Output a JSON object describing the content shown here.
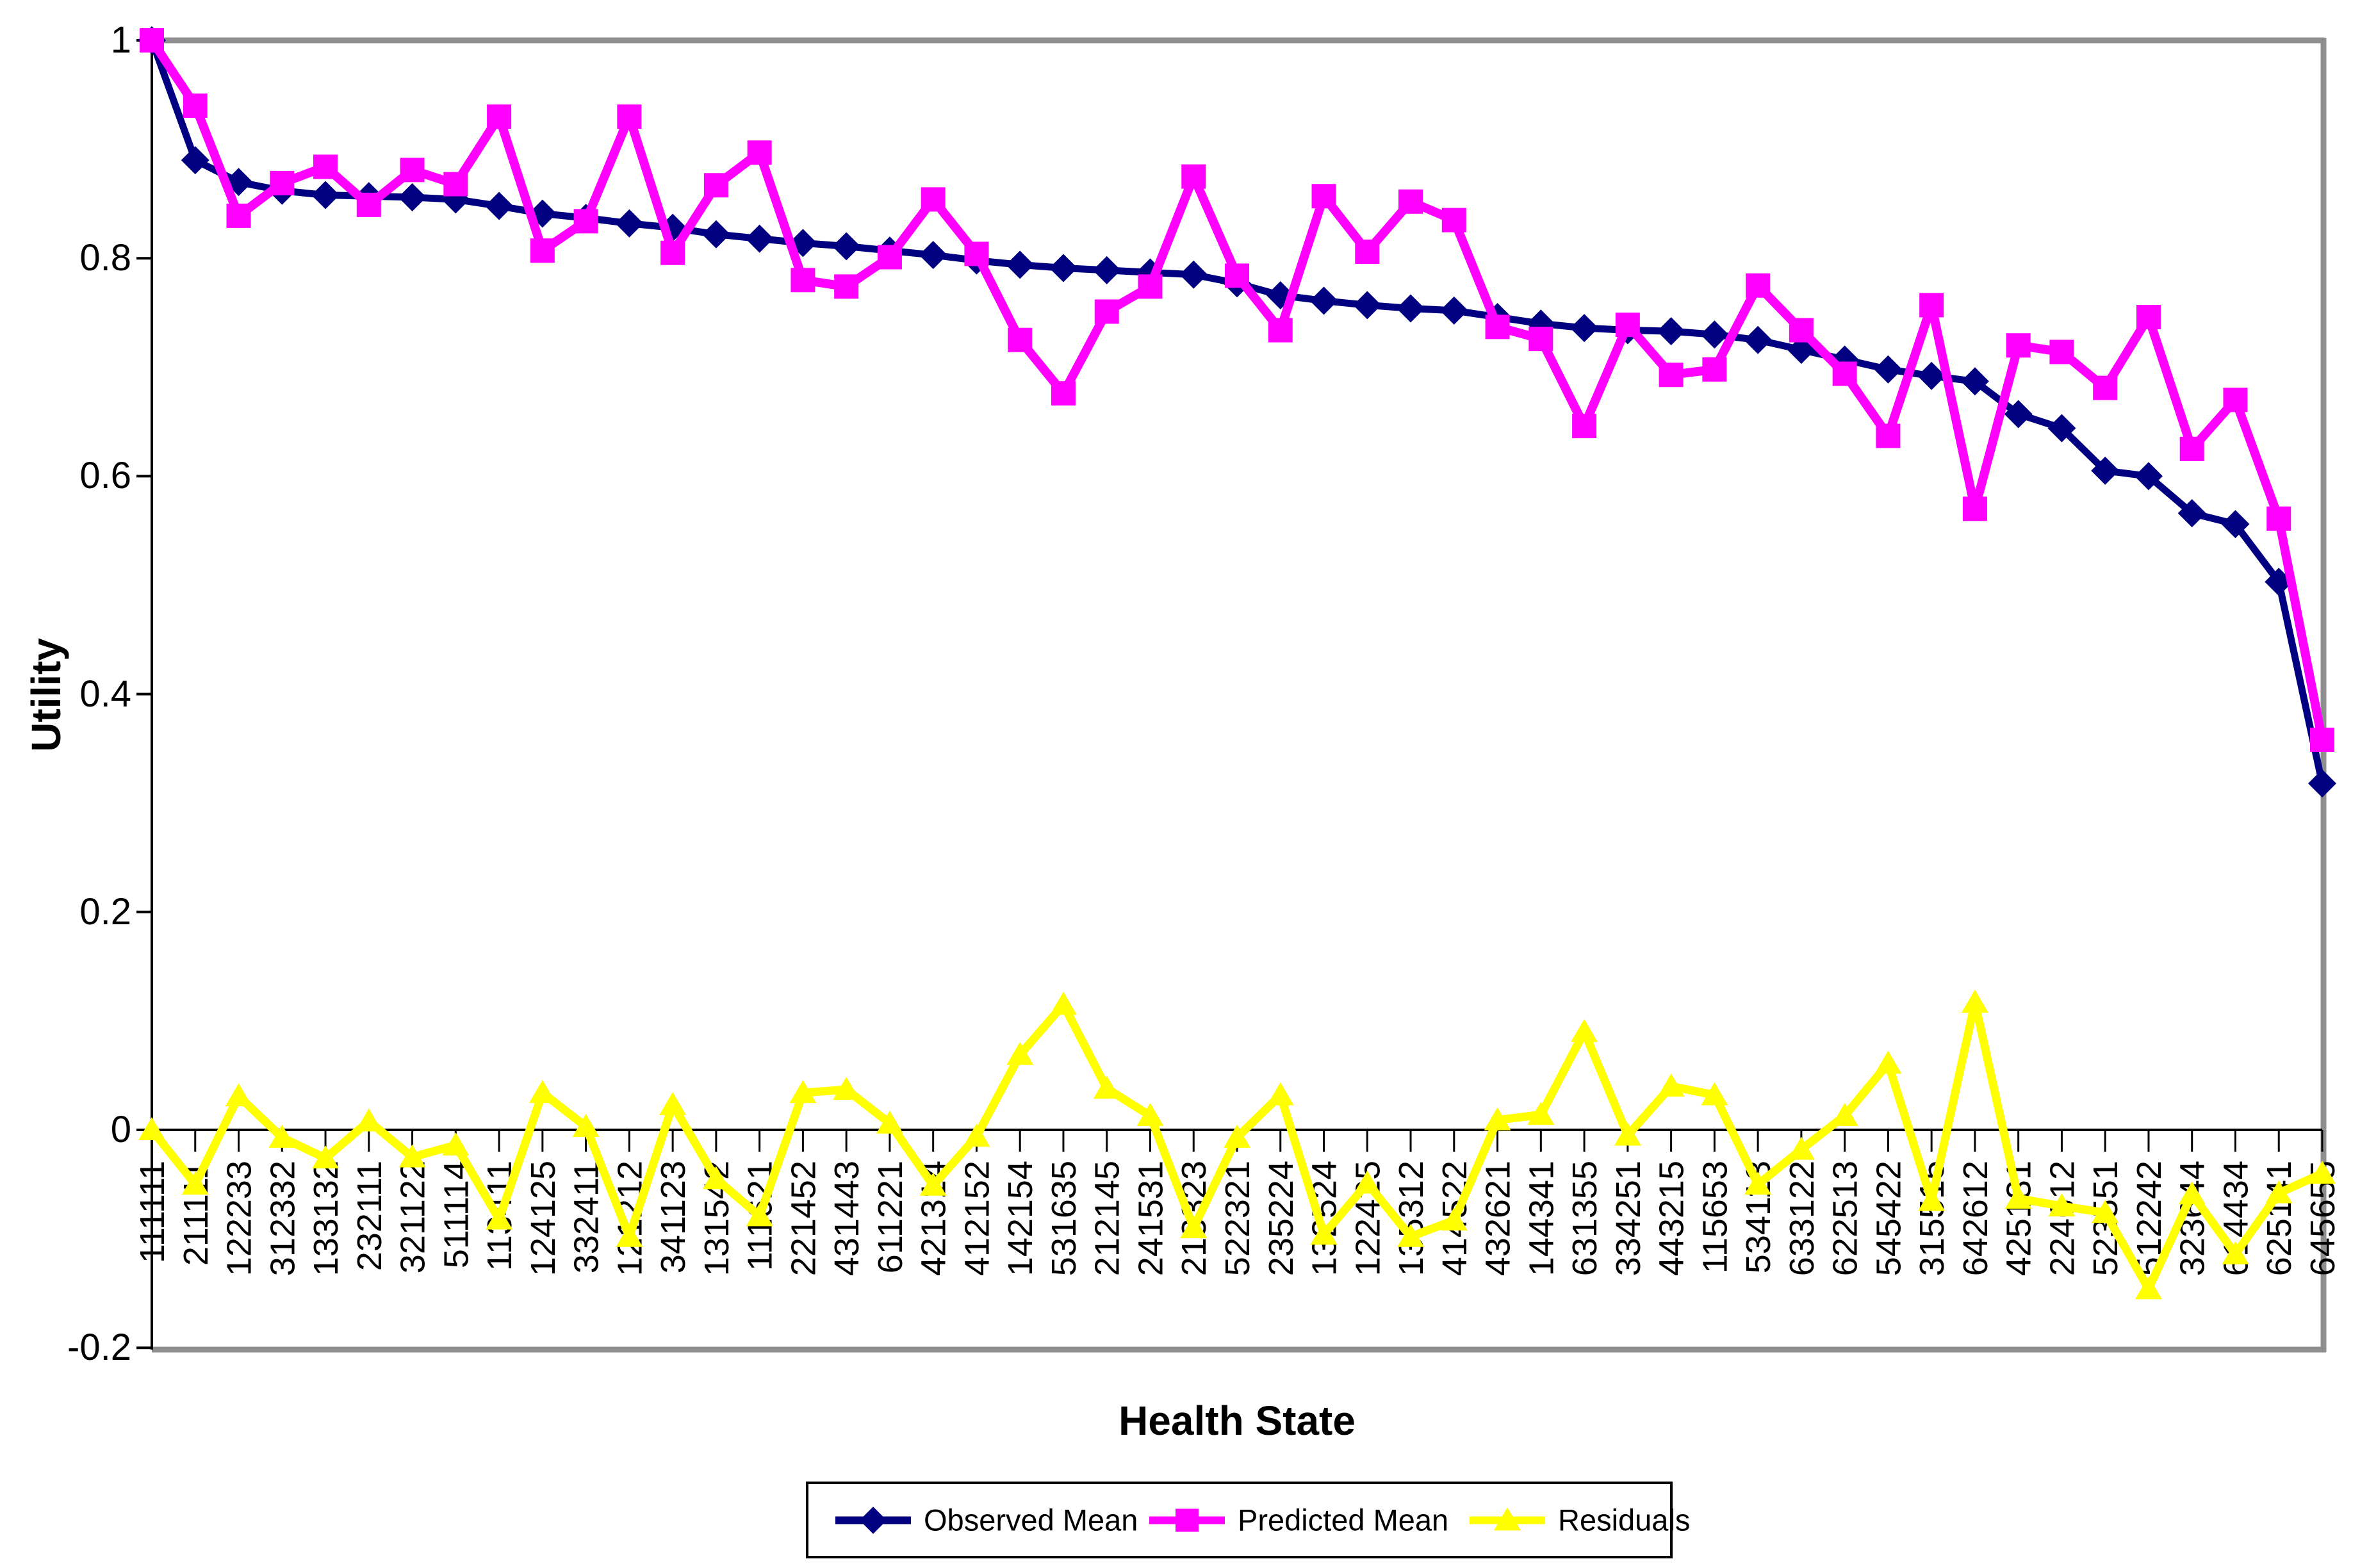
{
  "chart_data": {
    "type": "line",
    "xlabel": "Health State",
    "ylabel": "Utility",
    "ylim": [
      -0.2,
      1.0
    ],
    "yticks": [
      1,
      0.8,
      0.6,
      0.4,
      0.2,
      0,
      -0.2
    ],
    "ytick_labels": [
      "1",
      "0.8",
      "0.6",
      "0.4",
      "0.2",
      "0",
      "-0.2"
    ],
    "grid": "top line at y=1 only, frame on top/right/bottom",
    "legend_position": "bottom",
    "colors": {
      "observed": "#000080",
      "predicted": "#FF00FF",
      "residuals": "#FFFF00",
      "frame_gray": "#8F8F8F",
      "axis_black": "#000000"
    },
    "categories": [
      "111111",
      "211111",
      "122233",
      "312332",
      "133132",
      "232111",
      "321122",
      "511114",
      "113411",
      "124125",
      "332411",
      "121212",
      "341123",
      "131542",
      "111621",
      "221452",
      "431443",
      "611221",
      "421314",
      "412152",
      "142154",
      "531635",
      "212145",
      "241531",
      "213323",
      "522321",
      "235224",
      "132524",
      "122425",
      "135312",
      "414522",
      "432621",
      "144341",
      "631355",
      "334251",
      "443215",
      "115653",
      "534113",
      "633122",
      "622513",
      "545422",
      "315515",
      "642612",
      "425131",
      "224612",
      "523551",
      "512242",
      "323644",
      "614434",
      "625141",
      "645655"
    ],
    "series": [
      {
        "name": "Observed Mean",
        "marker": "diamond",
        "color": "#000080",
        "values": [
          1.0,
          0.89,
          0.87,
          0.862,
          0.858,
          0.857,
          0.856,
          0.854,
          0.848,
          0.841,
          0.837,
          0.832,
          0.828,
          0.822,
          0.818,
          0.814,
          0.811,
          0.807,
          0.803,
          0.798,
          0.794,
          0.791,
          0.789,
          0.787,
          0.785,
          0.777,
          0.766,
          0.761,
          0.757,
          0.754,
          0.752,
          0.746,
          0.74,
          0.736,
          0.734,
          0.733,
          0.73,
          0.725,
          0.716,
          0.707,
          0.698,
          0.692,
          0.687,
          0.657,
          0.644,
          0.605,
          0.6,
          0.566,
          0.556,
          0.503,
          0.318
        ]
      },
      {
        "name": "Predicted Mean",
        "marker": "square",
        "color": "#FF00FF",
        "values": [
          1.0,
          0.94,
          0.839,
          0.869,
          0.884,
          0.849,
          0.881,
          0.868,
          0.93,
          0.807,
          0.834,
          0.93,
          0.805,
          0.867,
          0.897,
          0.78,
          0.774,
          0.801,
          0.854,
          0.804,
          0.725,
          0.676,
          0.751,
          0.774,
          0.875,
          0.784,
          0.734,
          0.857,
          0.806,
          0.852,
          0.835,
          0.737,
          0.726,
          0.646,
          0.739,
          0.693,
          0.698,
          0.775,
          0.734,
          0.694,
          0.637,
          0.757,
          0.57,
          0.72,
          0.714,
          0.681,
          0.746,
          0.625,
          0.67,
          0.561,
          0.358
        ]
      },
      {
        "name": "Residuals",
        "marker": "triangle",
        "color": "#FFFF00",
        "values": [
          0.0,
          -0.05,
          0.031,
          -0.007,
          -0.026,
          0.008,
          -0.025,
          -0.014,
          -0.082,
          0.034,
          0.003,
          -0.098,
          0.023,
          -0.045,
          -0.079,
          0.034,
          0.037,
          0.006,
          -0.051,
          -0.006,
          0.069,
          0.115,
          0.038,
          0.013,
          -0.09,
          -0.007,
          0.032,
          -0.096,
          -0.049,
          -0.098,
          -0.083,
          0.009,
          0.014,
          0.09,
          -0.005,
          0.04,
          0.032,
          -0.05,
          -0.018,
          0.013,
          0.061,
          -0.065,
          0.117,
          -0.063,
          -0.07,
          -0.076,
          -0.146,
          -0.059,
          -0.114,
          -0.058,
          -0.04
        ]
      }
    ]
  }
}
